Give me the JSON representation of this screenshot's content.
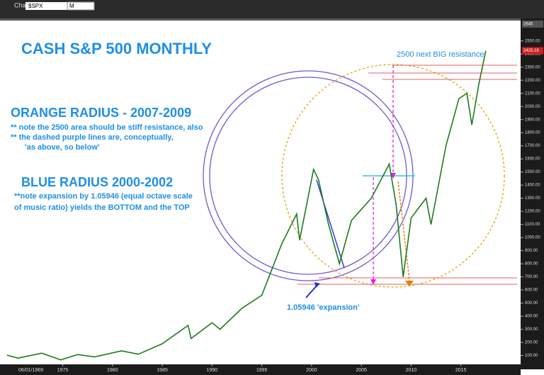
{
  "toolbar": {
    "window": "Chart",
    "symbol": "$SPX",
    "interval": "M"
  },
  "date_label": "06/01/1969",
  "chart_data": {
    "type": "line",
    "title": "CASH S&P 500 MONTHLY",
    "annotations": [
      "2500 next BIG resistance",
      "ORANGE RADIUS - 2007-2009",
      "** note the 2500 area should be stiff resistance, also",
      "** the dashed purple lines are, conceptually,",
      "'as above, so below'",
      "BLUE RADIUS 2000-2002",
      "**note expansion by 1.05946 (equal octave scale",
      "of music ratio) yields the BOTTOM and the TOP",
      "1.05946 'expansion'"
    ],
    "x": [
      1969.4,
      1970.5,
      1972.9,
      1974.8,
      1976.5,
      1978.2,
      1980.9,
      1982.6,
      1985,
      1987.6,
      1987.9,
      1990,
      1990.8,
      1993,
      1995,
      1997,
      1998.5,
      1998.8,
      2000.2,
      2000.7,
      2001.7,
      2002.8,
      2004,
      2006,
      2007.8,
      2008.5,
      2009.2,
      2010,
      2011.5,
      2012,
      2013.5,
      2014.8,
      2015.6,
      2016.1,
      2016.8,
      2017.5
    ],
    "series": [
      {
        "name": "S&P 500",
        "color": "#1f7a1f",
        "values": [
          103,
          80,
          118,
          67,
          107,
          90,
          135,
          110,
          190,
          330,
          230,
          350,
          300,
          460,
          560,
          950,
          1180,
          980,
          1520,
          1440,
          1100,
          800,
          1130,
          1300,
          1560,
          1250,
          700,
          1150,
          1300,
          1100,
          1700,
          2060,
          2100,
          1860,
          2170,
          2425.18
        ]
      }
    ],
    "last_value": 2425.18,
    "top_value": 2645,
    "xlim": [
      1968.7,
      2021
    ],
    "ylim": [
      0,
      2650
    ],
    "xticks": [
      1975,
      1980,
      1985,
      1990,
      1995,
      2000,
      2005,
      2010,
      2015
    ],
    "yticks": [
      {
        "value": 100,
        "label": "100.00"
      },
      {
        "value": 200,
        "label": "200.00"
      },
      {
        "value": 300,
        "label": "300.00"
      },
      {
        "value": 400,
        "label": "400.00"
      },
      {
        "value": 500,
        "label": "500.00"
      },
      {
        "value": 600,
        "label": "600.00"
      },
      {
        "value": 700,
        "label": "700.00"
      },
      {
        "value": 800,
        "label": "800.00"
      },
      {
        "value": 900,
        "label": "900.00"
      },
      {
        "value": 1000,
        "label": "1000.00"
      },
      {
        "value": 1100,
        "label": "1100.00"
      },
      {
        "value": 1200,
        "label": "1200.00"
      },
      {
        "value": 1300,
        "label": "1300.00"
      },
      {
        "value": 1400,
        "label": "1400.00"
      },
      {
        "value": 1500,
        "label": "1500.00"
      },
      {
        "value": 1600,
        "label": "1600.00"
      },
      {
        "value": 1700,
        "label": "1700.00"
      },
      {
        "value": 1800,
        "label": "1800.00"
      },
      {
        "value": 1900,
        "label": "1900.00"
      },
      {
        "value": 2000,
        "label": "2000.00"
      },
      {
        "value": 2100,
        "label": "2100.00"
      },
      {
        "value": 2200,
        "label": "2200.00"
      },
      {
        "value": 2300,
        "label": "2300.00"
      },
      {
        "value": 2400,
        "label": "2400.00"
      },
      {
        "value": 2500,
        "label": "2500.00"
      }
    ]
  }
}
